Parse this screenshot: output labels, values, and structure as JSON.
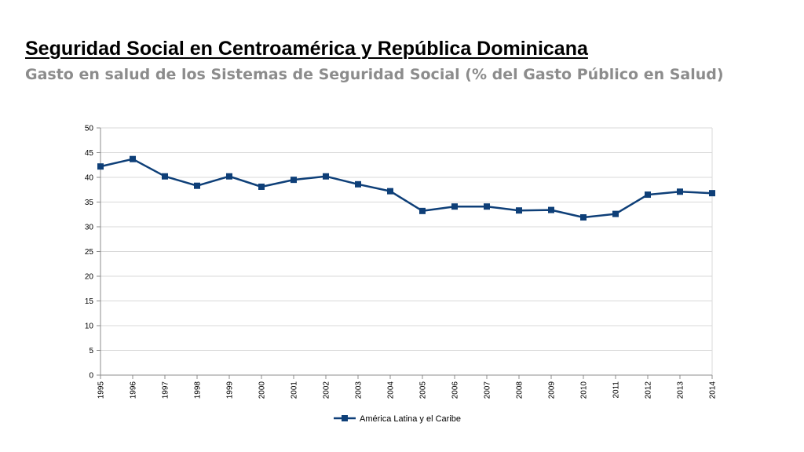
{
  "header": {
    "title": "Seguridad Social en Centroamérica y República Dominicana",
    "subtitle": "Gasto en salud de los Sistemas de Seguridad Social  (% del Gasto Público en Salud)"
  },
  "chart_data": {
    "type": "line",
    "title": "Seguridad Social en Centroamérica y República Dominicana",
    "subtitle": "Gasto en salud de los Sistemas de Seguridad Social  (% del Gasto Público en Salud)",
    "xlabel": "",
    "ylabel": "",
    "categories": [
      "1995",
      "1996",
      "1997",
      "1998",
      "1999",
      "2000",
      "2001",
      "2002",
      "2003",
      "2004",
      "2005",
      "2006",
      "2007",
      "2008",
      "2009",
      "2010",
      "2011",
      "2012",
      "2013",
      "2014"
    ],
    "series": [
      {
        "name": "América Latina y el Caribe",
        "color": "#0e3f78",
        "values": [
          42.2,
          43.7,
          40.2,
          38.3,
          40.2,
          38.1,
          39.5,
          40.2,
          38.6,
          37.2,
          33.2,
          34.1,
          34.1,
          33.3,
          33.4,
          31.9,
          32.6,
          36.5,
          37.1,
          36.8
        ]
      }
    ],
    "ylim": [
      0,
      50
    ],
    "yticks": [
      "0",
      "5",
      "10",
      "15",
      "20",
      "25",
      "30",
      "35",
      "40",
      "45",
      "50"
    ],
    "grid": true,
    "legend_position": "bottom-center",
    "colors": {
      "series": "#0e3f78",
      "grid": "#d9d9d9",
      "axis": "#8c8c8c"
    }
  }
}
